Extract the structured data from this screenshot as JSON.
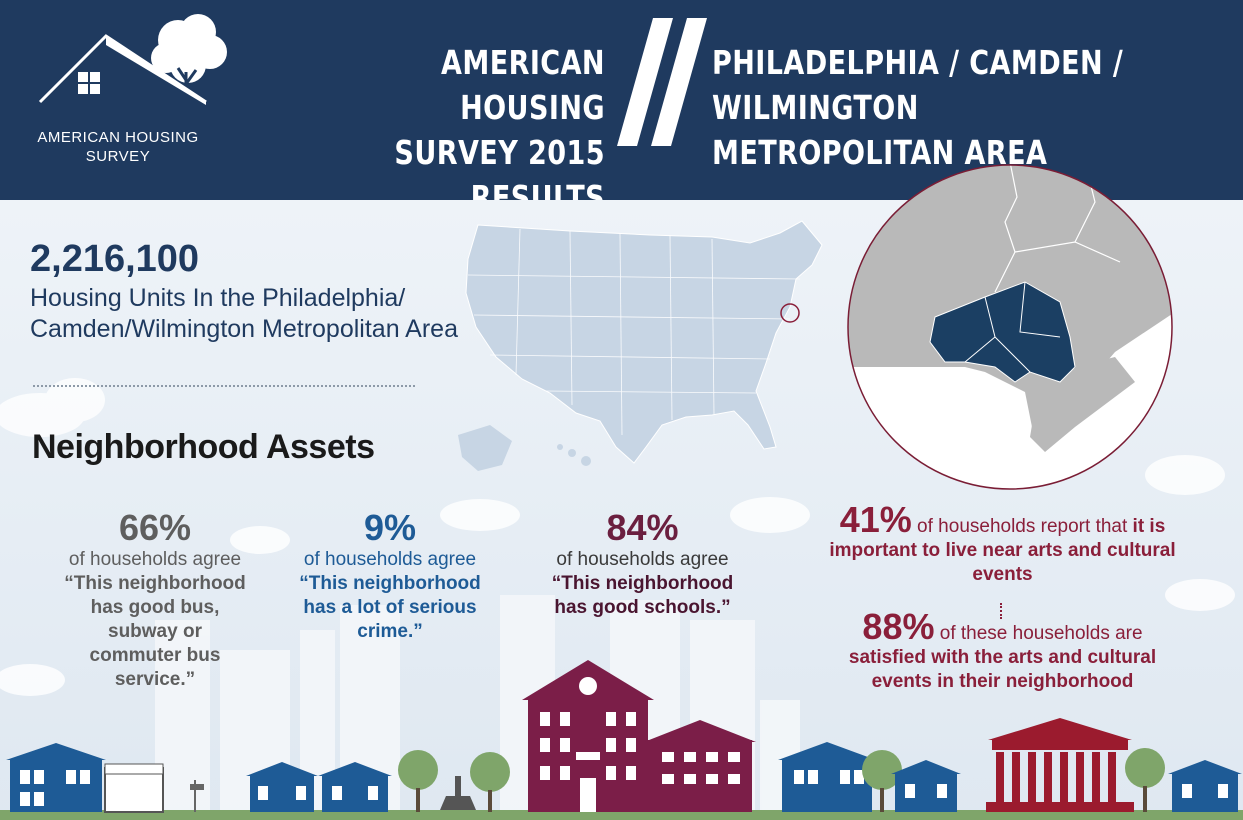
{
  "header": {
    "logo_text": "AMERICAN HOUSING SURVEY",
    "title_left_line1": "AMERICAN HOUSING",
    "title_left_line2": "SURVEY 2015 RESULTS",
    "title_right_line1": "PHILADELPHIA / CAMDEN /",
    "title_right_line2": "WILMINGTON METROPOLITAN AREA"
  },
  "summary": {
    "number": "2,216,100",
    "label": "Housing Units In the Philadelphia/ Camden/Wilmington Metropolitan Area"
  },
  "section_title": "Neighborhood Assets",
  "stats": [
    {
      "pct": "66%",
      "text_plain": "of households agree ",
      "text_bold": "“This neighborhood has good bus, subway or commuter bus service.”"
    },
    {
      "pct": "9%",
      "text_plain": "of households agree ",
      "text_bold": "“This neighborhood has a lot of serious crime.”"
    },
    {
      "pct": "84%",
      "text_plain": "of households agree ",
      "text_bold": "“This neighborhood has good schools.”"
    }
  ],
  "arts": {
    "pct1": "41%",
    "text1_plain": " of households report that ",
    "text1_bold": "it is important to live near arts and cultural events",
    "pct2": "88%",
    "text2_plain": " of these households are ",
    "text2_bold": "satisfied with the arts and cultural events in their neighborhood"
  },
  "colors": {
    "header_bg": "#1f3a5f",
    "navy": "#1f3a5f",
    "blue": "#1e5b96",
    "maroon": "#8a1f3a",
    "gray": "#5e5e5e",
    "map_gray": "#b9b9b9",
    "map_highlight": "#1b3f63"
  }
}
